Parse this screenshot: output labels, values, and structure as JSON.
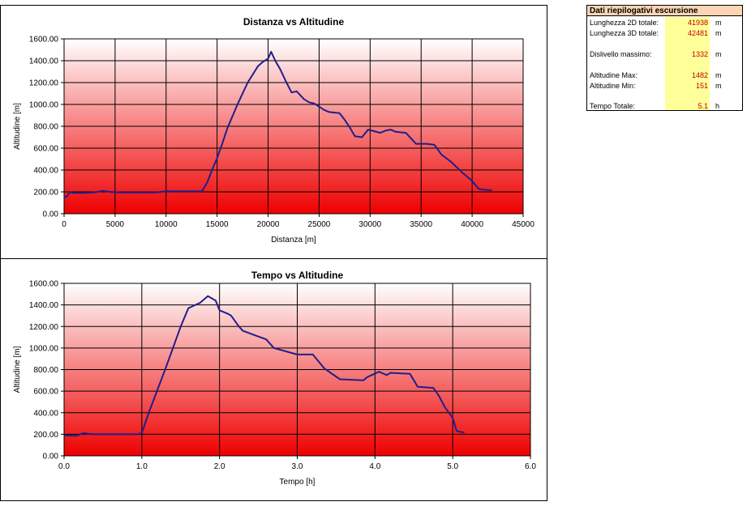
{
  "summary": {
    "title": "Dati riepilogativi escursione",
    "accent_color": "#fcd5b4",
    "value_color": "#c00000",
    "value_bg": "#ffff99",
    "rows": [
      {
        "label": "Lunghezza 2D totale:",
        "value": "41938",
        "unit": "m"
      },
      {
        "label": "Lunghezza 3D totale:",
        "value": "42481",
        "unit": "m"
      },
      {
        "label": "Dislivello massimo:",
        "value": "1332",
        "unit": "m"
      },
      {
        "label": "Altitudine Max:",
        "value": "1482",
        "unit": "m"
      },
      {
        "label": "Altitudine Min:",
        "value": "151",
        "unit": "m"
      },
      {
        "label": "Tempo Totale:",
        "value": "5.1",
        "unit": "h"
      }
    ]
  },
  "chart_data": [
    {
      "type": "line",
      "title": "Distanza vs Altitudine",
      "xlabel": "Distanza [m]",
      "ylabel": "Altitudine [m]",
      "xlim": [
        0,
        45000
      ],
      "ylim": [
        0,
        1600
      ],
      "xticks": [
        "0",
        "5000",
        "10000",
        "15000",
        "20000",
        "25000",
        "30000",
        "35000",
        "40000",
        "45000"
      ],
      "yticks": [
        "0.00",
        "200.00",
        "400.00",
        "600.00",
        "800.00",
        "1000.00",
        "1200.00",
        "1400.00",
        "1600.00"
      ],
      "grid": true,
      "line_color": "#1f1f8c",
      "background_gradient": [
        "#ffffff",
        "#ee0000"
      ],
      "series": [
        {
          "x": [
            0,
            300,
            600,
            800,
            2000,
            3000,
            3800,
            4500,
            5500,
            7000,
            9000,
            10000,
            11500,
            13500,
            14000,
            14500,
            15000,
            15500,
            16000,
            17000,
            18000,
            19000,
            19500,
            20000,
            20300,
            20700,
            21200,
            21800,
            22300,
            22800,
            23500,
            24000,
            24500,
            25500,
            26000,
            27000,
            27500,
            28000,
            28500,
            29200,
            29800,
            30200,
            31000,
            31500,
            32000,
            32500,
            33500,
            34500,
            35500,
            36300,
            37000,
            38000,
            39000,
            40000,
            40600,
            41000,
            41938
          ],
          "y": [
            150,
            160,
            200,
            190,
            190,
            195,
            210,
            200,
            195,
            195,
            195,
            205,
            205,
            205,
            280,
            400,
            510,
            640,
            780,
            1000,
            1200,
            1350,
            1390,
            1420,
            1482,
            1400,
            1320,
            1200,
            1110,
            1120,
            1050,
            1020,
            1010,
            950,
            930,
            920,
            860,
            790,
            710,
            700,
            770,
            760,
            740,
            760,
            770,
            750,
            740,
            640,
            640,
            630,
            540,
            470,
            380,
            300,
            230,
            220,
            215
          ]
        }
      ]
    },
    {
      "type": "line",
      "title": "Tempo vs Altitudine",
      "xlabel": "Tempo [h]",
      "ylabel": "Altitudine [m]",
      "xlim": [
        0,
        6
      ],
      "ylim": [
        0,
        1600
      ],
      "xticks": [
        "0.0",
        "1.0",
        "2.0",
        "3.0",
        "4.0",
        "5.0",
        "6.0"
      ],
      "yticks": [
        "0.00",
        "200.00",
        "400.00",
        "600.00",
        "800.00",
        "1000.00",
        "1200.00",
        "1400.00",
        "1600.00"
      ],
      "grid": true,
      "line_color": "#1f1f8c",
      "background_gradient": [
        "#ffffff",
        "#ee0000"
      ],
      "series": [
        {
          "x": [
            0,
            0.15,
            0.25,
            0.35,
            0.5,
            0.7,
            0.95,
            1.0,
            1.1,
            1.3,
            1.5,
            1.6,
            1.75,
            1.85,
            1.95,
            2.0,
            2.1,
            2.15,
            2.25,
            2.3,
            2.45,
            2.6,
            2.7,
            2.85,
            3.0,
            3.2,
            3.35,
            3.55,
            3.85,
            3.9,
            4.05,
            4.15,
            4.2,
            4.45,
            4.5,
            4.55,
            4.75,
            4.82,
            4.9,
            5.0,
            5.05,
            5.15
          ],
          "y": [
            190,
            185,
            210,
            200,
            200,
            200,
            200,
            210,
            420,
            800,
            1200,
            1370,
            1420,
            1482,
            1440,
            1350,
            1320,
            1300,
            1200,
            1160,
            1120,
            1080,
            1000,
            970,
            940,
            940,
            810,
            710,
            700,
            730,
            780,
            750,
            770,
            760,
            700,
            640,
            630,
            560,
            450,
            350,
            230,
            215
          ]
        }
      ]
    }
  ]
}
